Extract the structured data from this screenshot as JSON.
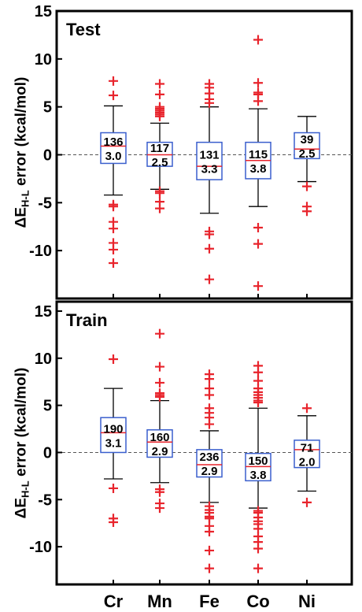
{
  "chart_data": [
    {
      "type": "box",
      "title": "Test",
      "ylabel_prefix": "ΔE",
      "ylabel_sub": "H-L",
      "ylabel_suffix": " error (kcal/mol)",
      "ylim": [
        -15,
        15
      ],
      "yticks": [
        -10,
        -5,
        0,
        5,
        10,
        15
      ],
      "ytick_labels": [
        "-10",
        "-5",
        "0",
        "5",
        "10",
        "15"
      ],
      "reference_line": 0,
      "categories": [
        "Cr",
        "Mn",
        "Fe",
        "Co",
        "Ni"
      ],
      "boxes": [
        {
          "category": "Cr",
          "whisker_low": -4.2,
          "q1": -0.9,
          "median": 0.9,
          "q3": 2.3,
          "whisker_high": 5.1,
          "count": "136",
          "spread": "3.0",
          "outliers": [
            7.7,
            6.2,
            -5.2,
            -5.4,
            -7.0,
            -7.7,
            -9.2,
            -9.9,
            -11.3
          ]
        },
        {
          "category": "Mn",
          "whisker_low": -3.6,
          "q1": -1.2,
          "median": 0.0,
          "q3": 1.3,
          "whisker_high": 3.3,
          "count": "117",
          "spread": "2.5",
          "outliers": [
            7.4,
            6.3,
            5.0,
            4.8,
            4.6,
            4.4,
            4.2,
            4.0,
            -3.8,
            -4.0,
            -4.9,
            -5.6
          ]
        },
        {
          "category": "Fe",
          "whisker_low": -6.1,
          "q1": -2.6,
          "median": -1.2,
          "q3": 1.3,
          "whisker_high": 5.0,
          "count": "131",
          "spread": "3.3",
          "outliers": [
            7.4,
            7.0,
            6.4,
            5.8,
            5.4,
            -8.0,
            -8.3,
            -9.8,
            -13.0
          ]
        },
        {
          "category": "Co",
          "whisker_low": -5.4,
          "q1": -2.5,
          "median": -0.6,
          "q3": 1.3,
          "whisker_high": 4.8,
          "count": "115",
          "spread": "3.8",
          "outliers": [
            12.0,
            7.5,
            6.5,
            6.3,
            5.6,
            -7.6,
            -9.3,
            -13.7
          ]
        },
        {
          "category": "Ni",
          "whisker_low": -2.8,
          "q1": -0.4,
          "median": 0.6,
          "q3": 2.3,
          "whisker_high": 4.0,
          "count": "39",
          "spread": "2.5",
          "outliers": [
            -3.3,
            -5.4,
            -5.9
          ]
        }
      ]
    },
    {
      "type": "box",
      "title": "Train",
      "ylabel_prefix": "ΔE",
      "ylabel_sub": "H-L",
      "ylabel_suffix": " error (kcal/mol)",
      "ylim": [
        -14,
        16
      ],
      "yticks": [
        -10,
        -5,
        0,
        5,
        10,
        15
      ],
      "ytick_labels": [
        "-10",
        "-5",
        "0",
        "5",
        "10",
        "15"
      ],
      "reference_line": 0,
      "categories": [
        "Cr",
        "Mn",
        "Fe",
        "Co",
        "Ni"
      ],
      "boxes": [
        {
          "category": "Cr",
          "whisker_low": -2.8,
          "q1": 0.0,
          "median": 2.1,
          "q3": 3.7,
          "whisker_high": 6.8,
          "count": "190",
          "spread": "3.1",
          "outliers": [
            9.9,
            -3.8,
            -7.0,
            -7.4
          ]
        },
        {
          "category": "Mn",
          "whisker_low": -3.2,
          "q1": -0.5,
          "median": 1.1,
          "q3": 2.4,
          "whisker_high": 5.5,
          "count": "160",
          "spread": "2.9",
          "outliers": [
            12.6,
            9.1,
            7.4,
            6.3,
            6.1,
            5.9,
            -3.9,
            -4.2,
            -5.4,
            -5.9
          ]
        },
        {
          "category": "Fe",
          "whisker_low": -5.3,
          "q1": -2.6,
          "median": -1.3,
          "q3": 0.3,
          "whisker_high": 2.3,
          "count": "236",
          "spread": "2.9",
          "outliers": [
            8.3,
            7.8,
            6.8,
            6.1,
            4.7,
            4.2,
            3.7,
            3.0,
            -5.7,
            -6.1,
            -6.4,
            -6.8,
            -7.0,
            -7.8,
            -8.4,
            -10.4,
            -12.3
          ]
        },
        {
          "category": "Co",
          "whisker_low": -5.9,
          "q1": -3.0,
          "median": -1.5,
          "q3": -0.1,
          "whisker_high": 4.7,
          "count": "150",
          "spread": "3.8",
          "outliers": [
            9.2,
            8.5,
            7.6,
            6.8,
            6.4,
            6.1,
            5.8,
            5.5,
            5.3,
            -6.2,
            -6.4,
            -6.9,
            -7.3,
            -7.6,
            -8.1,
            -8.9,
            -9.5,
            -10.2,
            -12.3
          ]
        },
        {
          "category": "Ni",
          "whisker_low": -4.1,
          "q1": -1.6,
          "median": 0.3,
          "q3": 1.3,
          "whisker_high": 3.9,
          "count": "71",
          "spread": "2.0",
          "outliers": [
            4.7,
            -5.3
          ]
        }
      ]
    }
  ]
}
